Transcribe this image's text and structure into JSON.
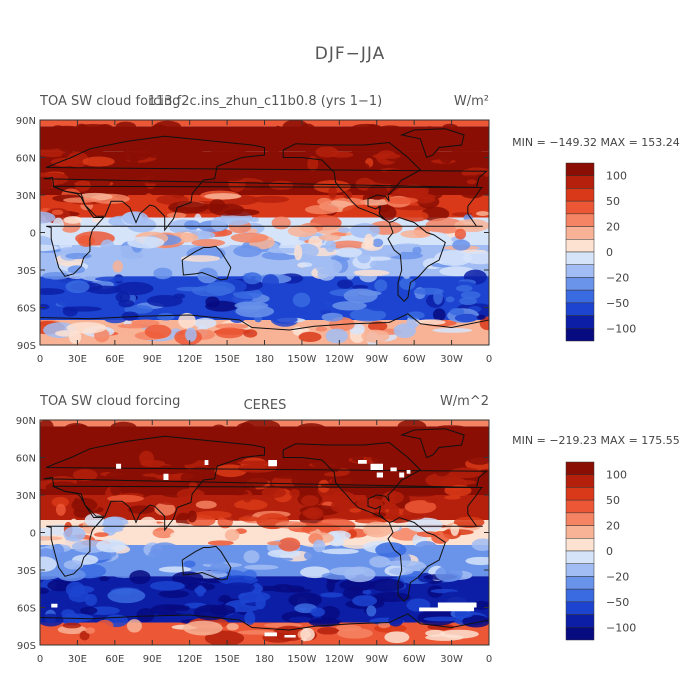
{
  "figure_title": "DJF−JJA",
  "colors": {
    "palette": [
      "#070b80",
      "#0c1ea6",
      "#1c44d0",
      "#3a6be0",
      "#6a93ea",
      "#a2bdf3",
      "#d6e4fa",
      "#fde2d2",
      "#f8b397",
      "#f48463",
      "#ec5836",
      "#d93918",
      "#b4200c",
      "#8a0e04"
    ]
  },
  "panels": [
    {
      "left_title": "TOA SW cloud forcing",
      "center_title": "113.f2c.ins_zhun_c11b0.8 (yrs 1−1)",
      "units": "W/m²",
      "min_max": "MIN = −149.32  MAX = 153.24",
      "colorbar_labels": [
        "100",
        "50",
        "20",
        "0",
        "−20",
        "−50",
        "−100"
      ],
      "missing_patches": []
    },
    {
      "left_title": "TOA SW cloud forcing",
      "center_title": "CERES",
      "units": "W/m^2",
      "min_max": "MIN = −219.23  MAX = 175.55",
      "colorbar_labels": [
        "100",
        "50",
        "20",
        "0",
        "−20",
        "−50",
        "−100"
      ],
      "missing_patches": [
        [
          9,
          -57,
          14,
          -60
        ],
        [
          61,
          55,
          65,
          51
        ],
        [
          99,
          47,
          103,
          42
        ],
        [
          132,
          58,
          135,
          54
        ],
        [
          183,
          58,
          190,
          53
        ],
        [
          255,
          58,
          262,
          55
        ],
        [
          265,
          55,
          275,
          50
        ],
        [
          270,
          48,
          275,
          44
        ],
        [
          281,
          52,
          286,
          49
        ],
        [
          288,
          48,
          292,
          44
        ],
        [
          294,
          50,
          297,
          47
        ],
        [
          180,
          -80,
          190,
          -83
        ],
        [
          196,
          -82,
          205,
          -84
        ],
        [
          319,
          -56,
          350,
          -60
        ],
        [
          304,
          -60,
          348,
          -63
        ]
      ]
    }
  ],
  "chart_data": [
    {
      "type": "heatmap",
      "title": "113.f2c.ins_zhun_c11b0.8 (yrs 1−1)",
      "variable": "TOA SW cloud forcing",
      "units": "W/m²",
      "x_ticks": [
        "0",
        "30E",
        "60E",
        "90E",
        "120E",
        "150E",
        "180",
        "150W",
        "120W",
        "90W",
        "60W",
        "30W",
        "0"
      ],
      "y_ticks": [
        "90N",
        "60N",
        "30N",
        "0",
        "30S",
        "60S",
        "90S"
      ],
      "xlim": [
        0,
        360
      ],
      "ylim": [
        -90,
        90
      ],
      "contour_levels": [
        -140,
        -120,
        -100,
        -80,
        -50,
        -30,
        -20,
        -10,
        0,
        10,
        20,
        30,
        50,
        80,
        100,
        120
      ],
      "min": -149.32,
      "max": 153.24,
      "bands": [
        {
          "lat": [
            65,
            85
          ],
          "value": 100
        },
        {
          "lat": [
            30,
            65
          ],
          "value": 60
        },
        {
          "lat": [
            12,
            30
          ],
          "value": 30
        },
        {
          "lat": [
            -10,
            12
          ],
          "value": -20
        },
        {
          "lat": [
            -35,
            -10
          ],
          "value": -40
        },
        {
          "lat": [
            -70,
            -35
          ],
          "value": -110
        },
        {
          "lat": [
            -90,
            -70
          ],
          "value": -5
        }
      ]
    },
    {
      "type": "heatmap",
      "title": "CERES",
      "variable": "TOA SW cloud forcing",
      "units": "W/m^2",
      "x_ticks": [
        "0",
        "30E",
        "60E",
        "90E",
        "120E",
        "150E",
        "180",
        "150W",
        "120W",
        "90W",
        "60W",
        "30W",
        "0"
      ],
      "y_ticks": [
        "90N",
        "60N",
        "30N",
        "0",
        "30S",
        "60S",
        "90S"
      ],
      "xlim": [
        0,
        360
      ],
      "ylim": [
        -90,
        90
      ],
      "contour_levels": [
        -140,
        -120,
        -100,
        -80,
        -50,
        -30,
        -20,
        -10,
        0,
        10,
        20,
        30,
        50,
        80,
        100,
        120
      ],
      "min": -219.23,
      "max": 175.55,
      "bands": [
        {
          "lat": [
            60,
            85
          ],
          "value": 90
        },
        {
          "lat": [
            30,
            60
          ],
          "value": 60
        },
        {
          "lat": [
            10,
            30
          ],
          "value": 40
        },
        {
          "lat": [
            -10,
            10
          ],
          "value": -10
        },
        {
          "lat": [
            -35,
            -10
          ],
          "value": -50
        },
        {
          "lat": [
            -72,
            -35
          ],
          "value": -130
        },
        {
          "lat": [
            -90,
            -72
          ],
          "value": 15
        }
      ]
    }
  ]
}
